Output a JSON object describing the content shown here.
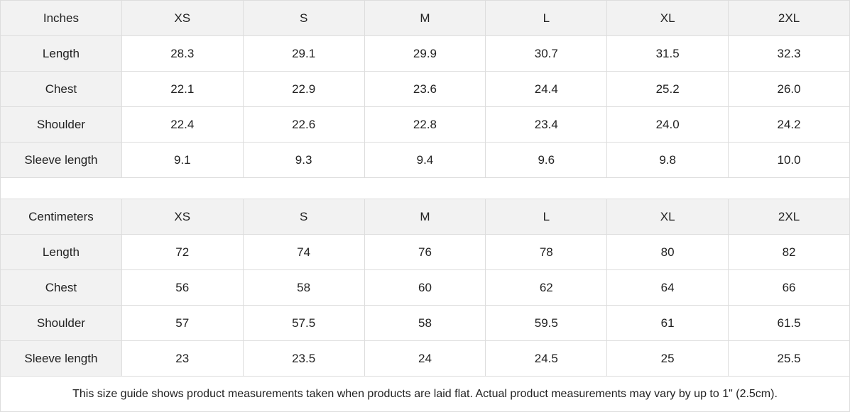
{
  "tables": [
    {
      "unit": "Inches",
      "sizes": [
        "XS",
        "S",
        "M",
        "L",
        "XL",
        "2XL"
      ],
      "rows": [
        {
          "label": "Length",
          "values": [
            "28.3",
            "29.1",
            "29.9",
            "30.7",
            "31.5",
            "32.3"
          ]
        },
        {
          "label": "Chest",
          "values": [
            "22.1",
            "22.9",
            "23.6",
            "24.4",
            "25.2",
            "26.0"
          ]
        },
        {
          "label": "Shoulder",
          "values": [
            "22.4",
            "22.6",
            "22.8",
            "23.4",
            "24.0",
            "24.2"
          ]
        },
        {
          "label": "Sleeve length",
          "values": [
            "9.1",
            "9.3",
            "9.4",
            "9.6",
            "9.8",
            "10.0"
          ]
        }
      ]
    },
    {
      "unit": "Centimeters",
      "sizes": [
        "XS",
        "S",
        "M",
        "L",
        "XL",
        "2XL"
      ],
      "rows": [
        {
          "label": "Length",
          "values": [
            "72",
            "74",
            "76",
            "78",
            "80",
            "82"
          ]
        },
        {
          "label": "Chest",
          "values": [
            "56",
            "58",
            "60",
            "62",
            "64",
            "66"
          ]
        },
        {
          "label": "Shoulder",
          "values": [
            "57",
            "57.5",
            "58",
            "59.5",
            "61",
            "61.5"
          ]
        },
        {
          "label": "Sleeve length",
          "values": [
            "23",
            "23.5",
            "24",
            "24.5",
            "25",
            "25.5"
          ]
        }
      ]
    }
  ],
  "footer_note": "This size guide shows product measurements taken when products are laid flat.  Actual product measurements may vary by up to 1\" (2.5cm).",
  "colors": {
    "header_bg": "#f2f2f2",
    "border": "#dddddd",
    "text": "#222222"
  }
}
